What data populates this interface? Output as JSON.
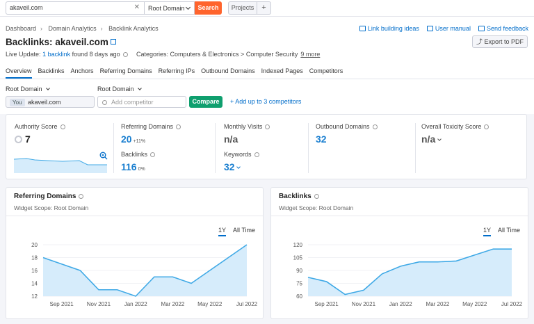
{
  "search": {
    "value": "akaveil.com",
    "clear_glyph": "✕",
    "scope": "Root Domain",
    "button": "Search"
  },
  "projects": {
    "label": "Projects",
    "plus": "+"
  },
  "breadcrumb": [
    "Dashboard",
    "Domain Analytics",
    "Backlink Analytics"
  ],
  "header_links": {
    "ideas": "Link building ideas",
    "manual": "User manual",
    "feedback": "Send feedback"
  },
  "title": {
    "prefix": "Backlinks:",
    "domain": "akaveil.com"
  },
  "export": {
    "label": "Export to PDF",
    "icon": "⤴"
  },
  "live_update": {
    "prefix": "Live Update:",
    "link": "1 backlink",
    "suffix": "found 8 days ago"
  },
  "categories": {
    "label": "Categories: Computers & Electronics > Computer Security",
    "more": "9 more"
  },
  "tabs": [
    "Overview",
    "Backlinks",
    "Anchors",
    "Referring Domains",
    "Referring IPs",
    "Outbound Domains",
    "Indexed Pages",
    "Competitors"
  ],
  "filters": {
    "root_domain_1": "Root Domain",
    "root_domain_2": "Root Domain",
    "you_badge": "You",
    "you_value": "akaveil.com",
    "competitor_placeholder": "Add competitor",
    "compare": "Compare",
    "add_up": "+  Add up to 3 competitors"
  },
  "metrics": {
    "authority": {
      "label": "Authority Score",
      "value": "7"
    },
    "ref_domains": {
      "label": "Referring Domains",
      "value": "20",
      "delta": "+11%"
    },
    "backlinks": {
      "label": "Backlinks",
      "value": "116",
      "delta": "0%"
    },
    "monthly_visits": {
      "label": "Monthly Visits",
      "value": "n/a"
    },
    "keywords": {
      "label": "Keywords",
      "value": "32"
    },
    "outbound": {
      "label": "Outbound Domains",
      "value": "32"
    },
    "toxicity": {
      "label": "Overall Toxicity Score",
      "value": "n/a"
    }
  },
  "widgets": {
    "ref": {
      "title": "Referring Domains",
      "scope": "Widget Scope: Root Domain",
      "range_1y": "1Y",
      "range_all": "All Time"
    },
    "bl": {
      "title": "Backlinks",
      "scope": "Widget Scope: Root Domain",
      "range_1y": "1Y",
      "range_all": "All Time"
    }
  },
  "colors": {
    "accent": "#006dca",
    "line": "#3fa9e6",
    "fill": "#d6ecfb",
    "search": "#ff642d",
    "compare": "#0f9f6e"
  },
  "chart_data": [
    {
      "type": "area",
      "x": [
        "2021-08",
        "2021-09",
        "2021-10",
        "2021-11",
        "2021-12",
        "2022-01",
        "2022-02",
        "2022-03",
        "2022-04",
        "2022-05",
        "2022-06",
        "2022-07"
      ],
      "xticks": [
        "Sep 2021",
        "Nov 2021",
        "Jan 2022",
        "Mar 2022",
        "May 2022",
        "Jul 2022"
      ],
      "values": [
        18,
        17,
        16,
        13,
        13,
        12,
        15,
        15,
        14,
        16,
        18,
        20
      ],
      "yticks": [
        12,
        14,
        16,
        18,
        20
      ],
      "ylim": [
        12,
        20
      ]
    },
    {
      "type": "area",
      "x": [
        "2021-08",
        "2021-09",
        "2021-10",
        "2021-11",
        "2021-12",
        "2022-01",
        "2022-02",
        "2022-03",
        "2022-04",
        "2022-05",
        "2022-06",
        "2022-07"
      ],
      "xticks": [
        "Sep 2021",
        "Nov 2021",
        "Jan 2022",
        "Mar 2022",
        "May 2022",
        "Jul 2022"
      ],
      "values": [
        82,
        77,
        62,
        67,
        86,
        95,
        100,
        100,
        101,
        108,
        115,
        115
      ],
      "yticks": [
        60,
        75,
        90,
        105,
        120
      ],
      "ylim": [
        60,
        120
      ]
    }
  ]
}
